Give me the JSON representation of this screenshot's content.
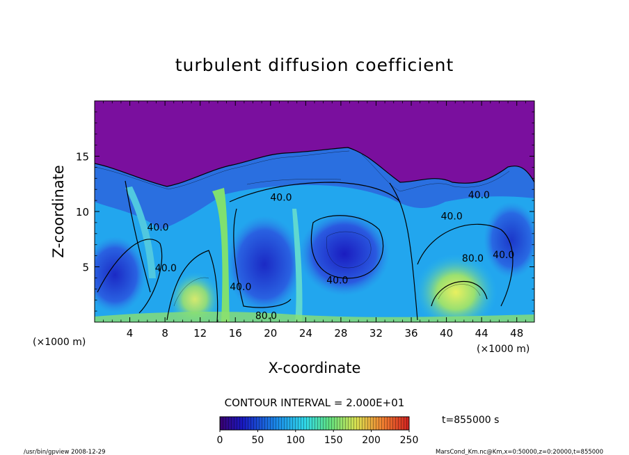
{
  "chart_data": {
    "type": "heatmap",
    "title": "turbulent diffusion coefficient",
    "xlabel": "X-coordinate",
    "ylabel": "Z-coordinate",
    "x_unit": "(×1000 m)",
    "y_unit": "(×1000 m)",
    "xlim": [
      0,
      50
    ],
    "ylim": [
      0,
      20
    ],
    "x_ticks": [
      4,
      8,
      12,
      16,
      20,
      24,
      28,
      32,
      36,
      40,
      44,
      48
    ],
    "y_ticks": [
      5,
      10,
      15
    ],
    "contour_interval_text": "CONTOUR INTERVAL = 2.000E+01",
    "time_label": "t=855000 s",
    "colorbar": {
      "min": 0,
      "max": 250,
      "ticks": [
        0,
        50,
        100,
        150,
        200,
        250
      ]
    },
    "contour_labels": [
      {
        "text": "40.0",
        "x": 21.2,
        "z": 11.3
      },
      {
        "text": "40.0",
        "x": 43.7,
        "z": 11.5
      },
      {
        "text": "40.0",
        "x": 40.6,
        "z": 9.6
      },
      {
        "text": "40.0",
        "x": 7.2,
        "z": 8.6
      },
      {
        "text": "40.0",
        "x": 46.5,
        "z": 6.1
      },
      {
        "text": "40.0",
        "x": 27.6,
        "z": 3.8
      },
      {
        "text": "40.0",
        "x": 16.6,
        "z": 3.2
      },
      {
        "text": "40.0",
        "x": 8.1,
        "z": 4.9
      },
      {
        "text": "80.0",
        "x": 43.0,
        "z": 5.8
      },
      {
        "text": "80.0",
        "x": 19.5,
        "z": 0.6
      }
    ],
    "footer_left": "/usr/bin/gpview   2008-12-29",
    "footer_right": "MarsCond_Km.nc@Km,x=0:50000,z=0:20000,t=855000"
  },
  "colors": {
    "background_field": "#7a0f9e",
    "low": "#1c2fd0",
    "mid": "#22b8f0",
    "high": "#7fe07a",
    "peak": "#f0e840"
  }
}
